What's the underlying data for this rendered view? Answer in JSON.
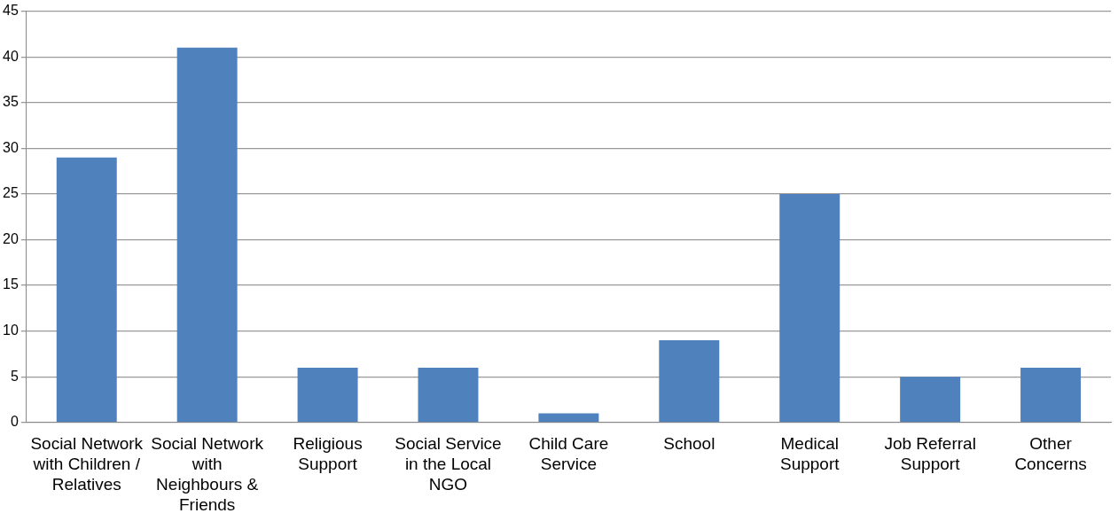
{
  "chart_data": {
    "type": "bar",
    "categories": [
      "Social Network with Children / Relatives",
      "Social Network with Neighbours & Friends",
      "Religious Support",
      "Social Service in the Local NGO",
      "Child Care Service",
      "School",
      "Medical Support",
      "Job Referral Support",
      "Other Concerns"
    ],
    "values": [
      29,
      41,
      6,
      6,
      1,
      9,
      25,
      5,
      6
    ],
    "color": "#4f81bd",
    "ylim": [
      0,
      45
    ],
    "yticks": [
      0,
      5,
      10,
      15,
      20,
      25,
      30,
      35,
      40,
      45
    ],
    "grid": "y",
    "legend": false
  }
}
